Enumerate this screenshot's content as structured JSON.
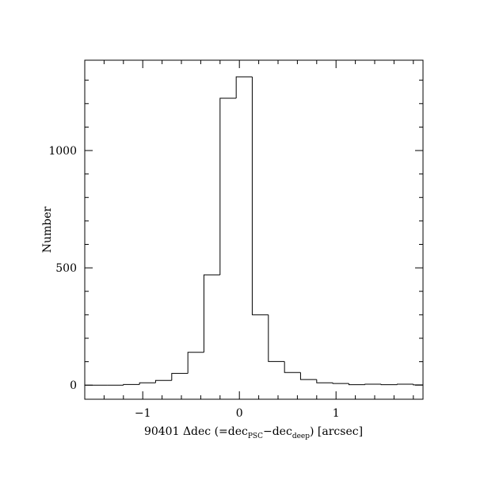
{
  "chart_data": {
    "type": "histogram",
    "xlabel": [
      "90401 Δdec (=dec",
      "PSC",
      "−dec",
      "deep",
      ") [arcsec]"
    ],
    "ylabel": "Number",
    "bins": [
      -1.6,
      -1.533,
      -1.367,
      -1.2,
      -1.033,
      -0.867,
      -0.7,
      -0.533,
      -0.367,
      -0.2,
      -0.033,
      0.133,
      0.3,
      0.467,
      0.633,
      0.8,
      0.967,
      1.133,
      1.3,
      1.467,
      1.633,
      1.8,
      1.9
    ],
    "values": [
      0,
      0,
      0,
      3,
      10,
      20,
      50,
      140,
      470,
      1223,
      1314,
      300,
      101,
      54,
      24,
      10,
      7,
      2,
      4,
      2,
      4,
      1
    ],
    "color": "#000000",
    "xlim": [
      -1.6,
      1.9
    ],
    "ylim": [
      -60,
      1385
    ],
    "xticks": [
      {
        "value": -1,
        "label": "−1"
      },
      0,
      1
    ],
    "yticks": [
      0,
      500,
      1000
    ],
    "xminorticks": [
      -1.4,
      -1.2,
      -0.8,
      -0.6,
      -0.4,
      -0.2,
      0.2,
      0.4,
      0.6,
      0.8,
      1.2,
      1.4,
      1.6,
      1.8
    ],
    "yminorticks": [
      100,
      200,
      300,
      400,
      600,
      700,
      800,
      900,
      1100,
      1200,
      1300
    ]
  }
}
